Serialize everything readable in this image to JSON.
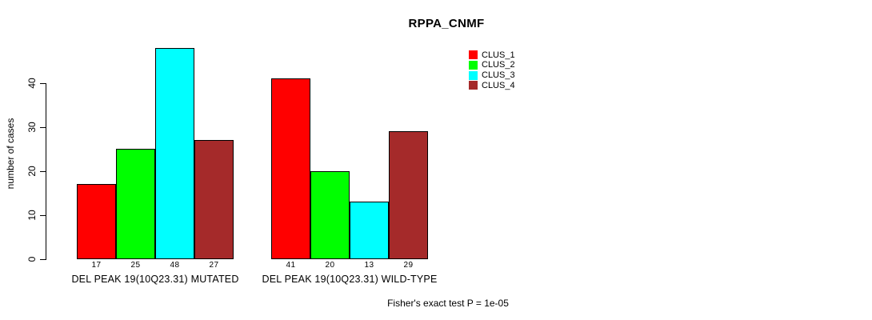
{
  "page": {
    "background_color": "#ffffff",
    "text_color": "#000000"
  },
  "chart_data": {
    "type": "bar",
    "title": "RPPA_CNMF",
    "ylabel": "number of cases",
    "xlabel": "",
    "ylim": [
      0,
      48
    ],
    "yticks": [
      0,
      10,
      20,
      30,
      40
    ],
    "grid": false,
    "legend_position": "top-right",
    "categories": [
      "DEL PEAK 19(10Q23.31) MUTATED",
      "DEL PEAK 19(10Q23.31) WILD-TYPE"
    ],
    "series": [
      {
        "name": "CLUS_1",
        "color": "#ff0000",
        "values": [
          17,
          41
        ]
      },
      {
        "name": "CLUS_2",
        "color": "#00ff00",
        "values": [
          25,
          20
        ]
      },
      {
        "name": "CLUS_3",
        "color": "#00ffff",
        "values": [
          48,
          13
        ]
      },
      {
        "name": "CLUS_4",
        "color": "#a52a2a",
        "values": [
          27,
          29
        ]
      }
    ],
    "bar_value_labels": [
      [
        "17",
        "25",
        "48",
        "27"
      ],
      [
        "41",
        "20",
        "13",
        "29"
      ]
    ],
    "axis_color": "#000000",
    "annotation": "Fisher's exact test P = 1e-05"
  }
}
